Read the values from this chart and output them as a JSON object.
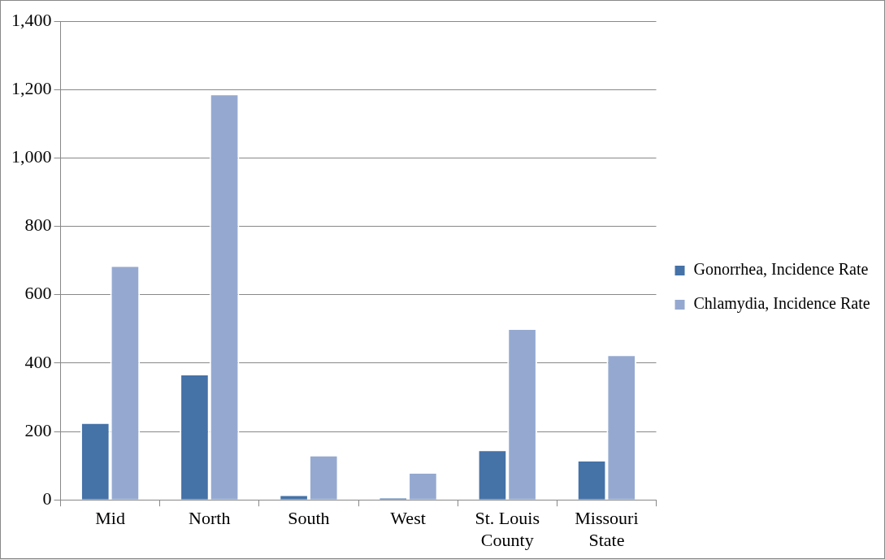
{
  "chart_data": {
    "type": "bar",
    "categories": [
      "Mid",
      "North",
      "South",
      "West",
      "St. Louis County",
      "Missouri State"
    ],
    "series": [
      {
        "name": "Gonorrhea, Incidence Rate",
        "color": "#4572a7",
        "values": [
          227,
          369,
          16,
          7,
          147,
          117
        ]
      },
      {
        "name": "Chlamydia, Incidence Rate",
        "color": "#95a9d0",
        "values": [
          686,
          1188,
          132,
          81,
          502,
          425
        ]
      }
    ],
    "ylim": [
      0,
      1400
    ],
    "yticks": [
      {
        "value": 0,
        "label": "0"
      },
      {
        "value": 200,
        "label": "200"
      },
      {
        "value": 400,
        "label": "400"
      },
      {
        "value": 600,
        "label": "600"
      },
      {
        "value": 800,
        "label": "800"
      },
      {
        "value": 1000,
        "label": "1,000"
      },
      {
        "value": 1200,
        "label": "1,200"
      },
      {
        "value": 1400,
        "label": "1,400"
      }
    ],
    "grid": "y",
    "legend": "right"
  }
}
